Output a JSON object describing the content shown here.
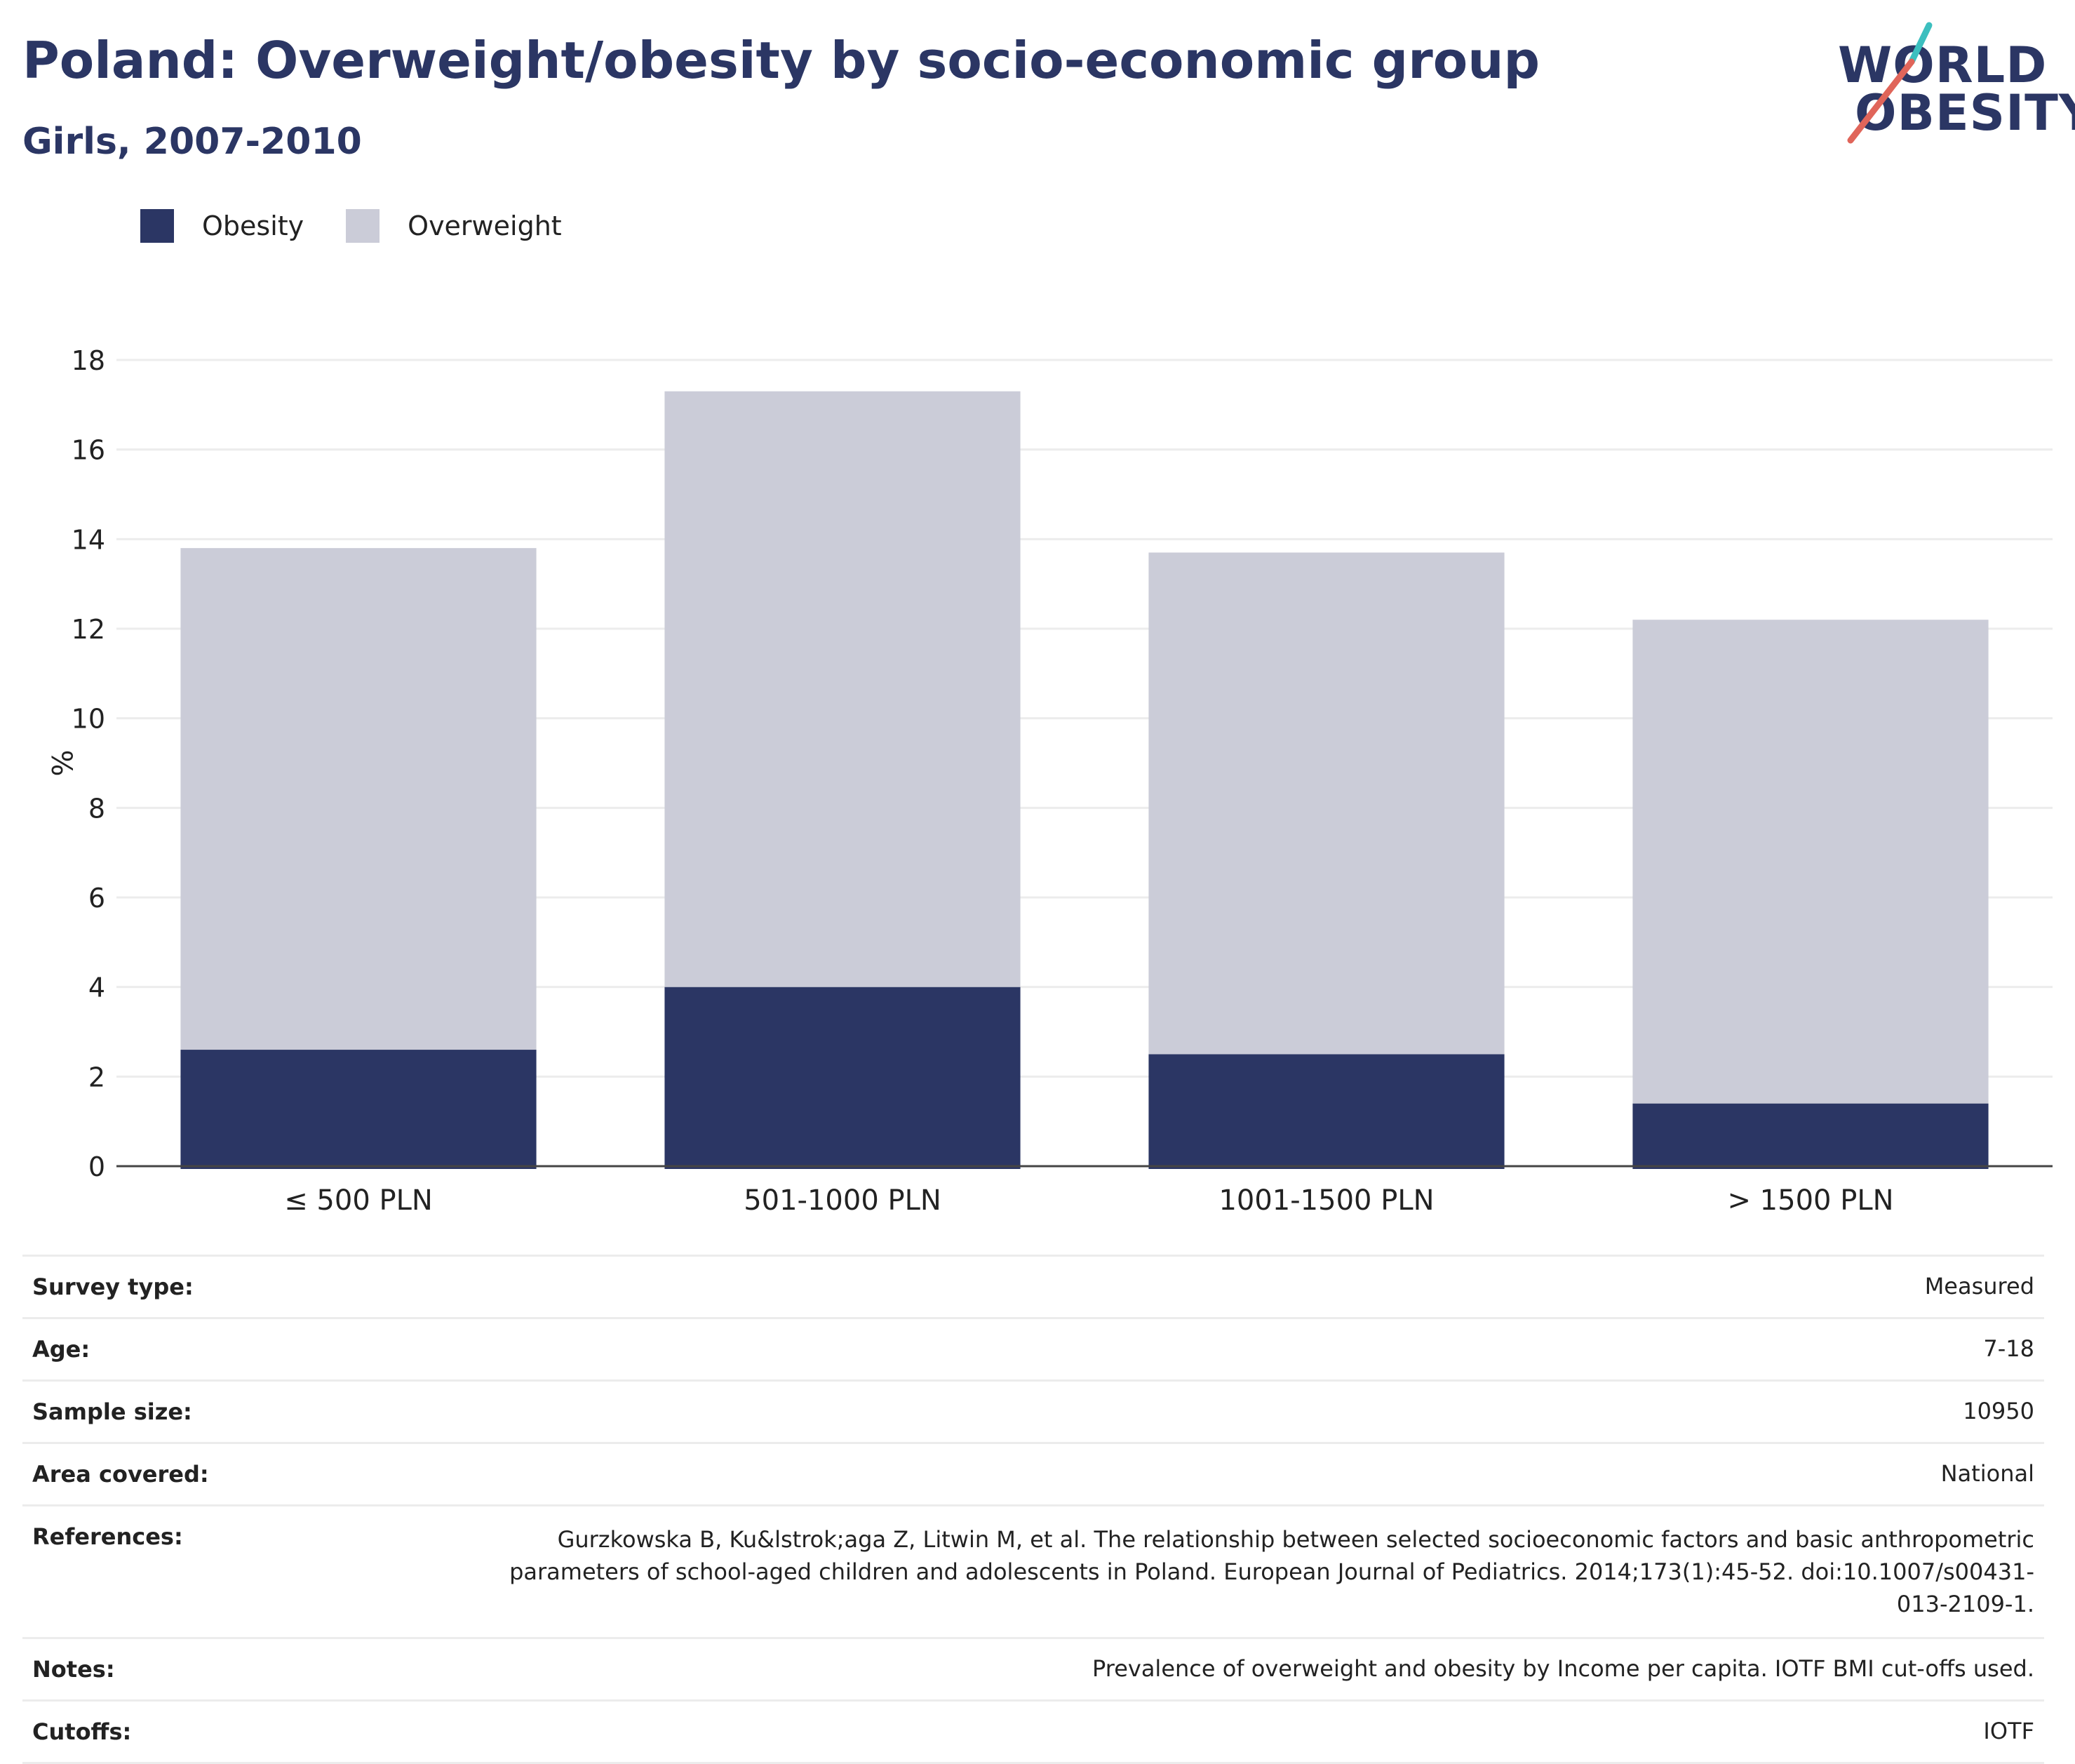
{
  "title": "Poland: Overweight/obesity by socio-economic group",
  "subtitle": "Girls, 2007-2010",
  "logo": {
    "line1": "WORLD",
    "line2": "OBESITY"
  },
  "colors": {
    "obesity": "#2b3664",
    "overweight": "#cbccd8",
    "accent_teal": "#3cbfbf",
    "accent_red": "#e0655a"
  },
  "legend": [
    {
      "label": "Obesity",
      "color": "#2b3664"
    },
    {
      "label": "Overweight",
      "color": "#cbccd8"
    }
  ],
  "chart_data": {
    "type": "bar",
    "stacked": true,
    "categories": [
      "≤ 500 PLN",
      "501-1000 PLN",
      "1001-1500 PLN",
      "> 1500 PLN"
    ],
    "series": [
      {
        "name": "Obesity",
        "values": [
          2.6,
          4.0,
          2.5,
          1.4
        ]
      },
      {
        "name": "Overweight",
        "values": [
          11.2,
          13.3,
          11.2,
          10.8
        ]
      }
    ],
    "ylabel": "%",
    "ylim": [
      0,
      18
    ],
    "yticks": [
      0,
      2,
      4,
      6,
      8,
      10,
      12,
      14,
      16,
      18
    ],
    "grid": true,
    "legend_position": "top-left"
  },
  "meta": [
    {
      "label": "Survey type:",
      "value": "Measured"
    },
    {
      "label": "Age:",
      "value": "7-18"
    },
    {
      "label": "Sample size:",
      "value": "10950"
    },
    {
      "label": "Area covered:",
      "value": "National"
    },
    {
      "label": "References:",
      "value": "Gurzkowska B, Ku&lstrok;aga Z, Litwin M, et al. The relationship between selected socioeconomic factors and basic anthropometric parameters of school-aged children and adolescents in Poland. European Journal of Pediatrics. 2014;173(1):45-52. doi:10.1007/s00431-013-2109-1."
    },
    {
      "label": "Notes:",
      "value": "Prevalence of overweight and obesity by Income per capita. IOTF BMI cut-offs used."
    },
    {
      "label": "Cutoffs:",
      "value": "IOTF"
    }
  ]
}
